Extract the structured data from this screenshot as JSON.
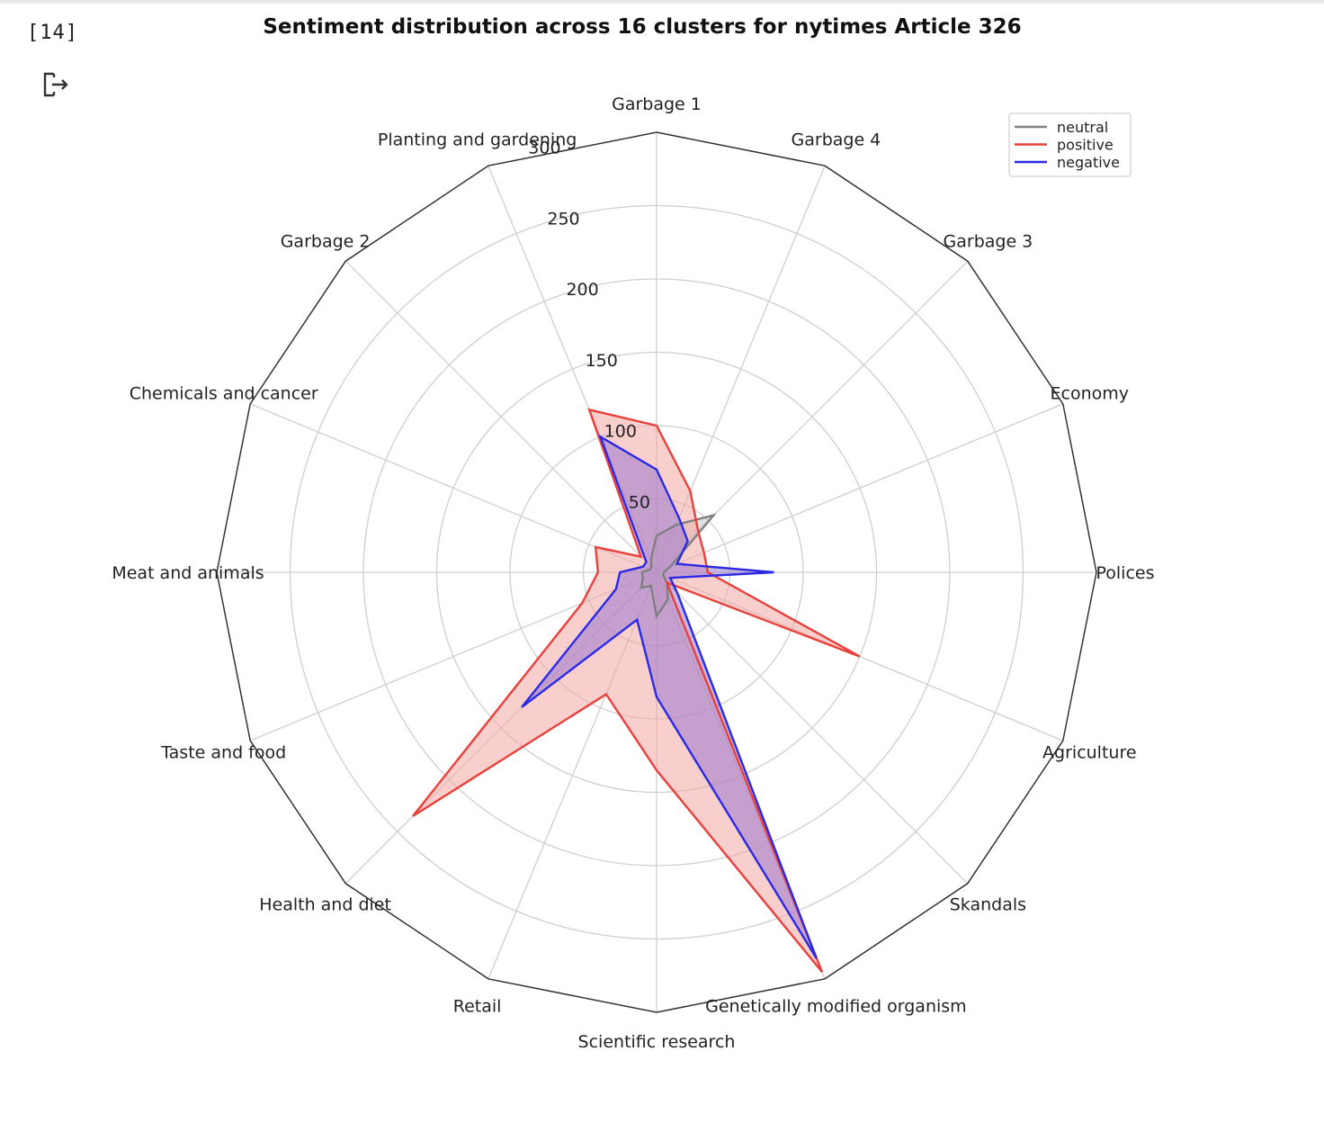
{
  "cell": {
    "execution_count": "[14]",
    "output_icon": "output-redirect-icon"
  },
  "chart_data": {
    "type": "radar",
    "title": "Sentiment distribution across 16 clusters for nytimes Article 326",
    "categories": [
      "Garbage 1",
      "Garbage 4",
      "Garbage 3",
      "Economy",
      "Polices",
      "Agriculture",
      "Skandals",
      "Genetically modified organism",
      "Scientific research",
      "Retail",
      "Health and diet",
      "Taste and food",
      "Meat and animals",
      "Chemicals and cancer",
      "Garbage 2",
      "Planting and gardening"
    ],
    "r_ticks": [
      50,
      100,
      150,
      200,
      250,
      300
    ],
    "rlim": [
      0,
      300
    ],
    "grid": true,
    "legend_position": "top-right",
    "series": [
      {
        "name": "neutral",
        "color": "#808080",
        "fill": "#c8c8c8",
        "values": [
          25,
          35,
          55,
          10,
          5,
          5,
          10,
          20,
          30,
          10,
          15,
          10,
          10,
          5,
          5,
          10
        ]
      },
      {
        "name": "positive",
        "color": "#e8403a",
        "fill": "#f4a8a6",
        "values": [
          100,
          60,
          40,
          35,
          35,
          150,
          10,
          295,
          135,
          90,
          235,
          55,
          40,
          45,
          15,
          120
        ]
      },
      {
        "name": "negative",
        "color": "#2a2ae6",
        "fill": "#9b7ad0",
        "values": [
          70,
          40,
          30,
          15,
          80,
          10,
          20,
          285,
          85,
          35,
          130,
          30,
          25,
          10,
          10,
          100
        ]
      }
    ]
  }
}
